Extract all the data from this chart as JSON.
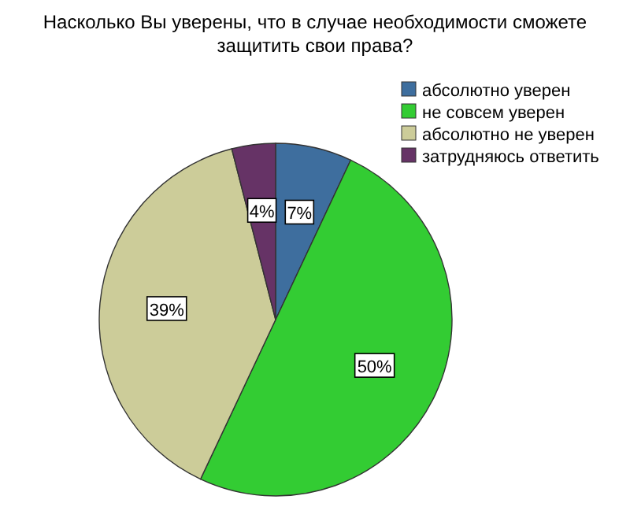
{
  "chart_data": {
    "type": "pie",
    "title": "Насколько Вы уверены, что в случае необходимости сможете защитить свои права?",
    "categories": [
      "абсолютно уверен",
      "не совсем уверен",
      "абсолютно не уверен",
      "затрудняюсь ответить"
    ],
    "values": [
      7,
      50,
      39,
      4
    ],
    "colors": [
      "#3e6e9e",
      "#33cc33",
      "#cccc99",
      "#663366"
    ],
    "value_labels": [
      "7%",
      "50%",
      "39%",
      "4%"
    ],
    "legend": "top right"
  }
}
